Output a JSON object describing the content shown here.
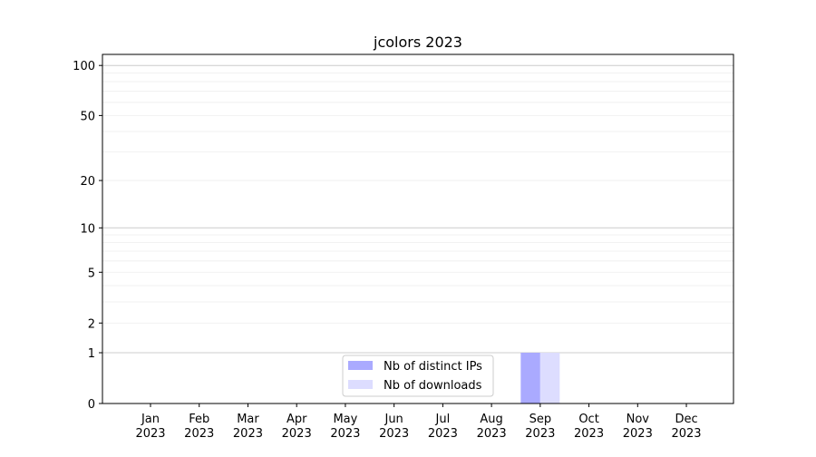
{
  "chart_data": {
    "type": "bar",
    "title": "jcolors 2023",
    "xlabel": "",
    "ylabel": "",
    "yscale": "log(1+y)",
    "ylim": [
      0,
      116
    ],
    "grid": true,
    "legend_placement": "lower center",
    "categories": [
      "Jan\n2023",
      "Feb\n2023",
      "Mar\n2023",
      "Apr\n2023",
      "May\n2023",
      "Jun\n2023",
      "Jul\n2023",
      "Aug\n2023",
      "Sep\n2023",
      "Oct\n2023",
      "Nov\n2023",
      "Dec\n2023"
    ],
    "yticks": [
      0,
      1,
      2,
      5,
      10,
      20,
      50,
      100
    ],
    "series": [
      {
        "name": "Nb of distinct IPs",
        "color": "#aaaaff",
        "values": [
          0,
          0,
          0,
          0,
          0,
          0,
          0,
          0,
          1,
          0,
          0,
          0
        ]
      },
      {
        "name": "Nb of downloads",
        "color": "#ddddff",
        "values": [
          0,
          0,
          0,
          0,
          0,
          0,
          0,
          0,
          1,
          0,
          0,
          0
        ]
      }
    ]
  }
}
